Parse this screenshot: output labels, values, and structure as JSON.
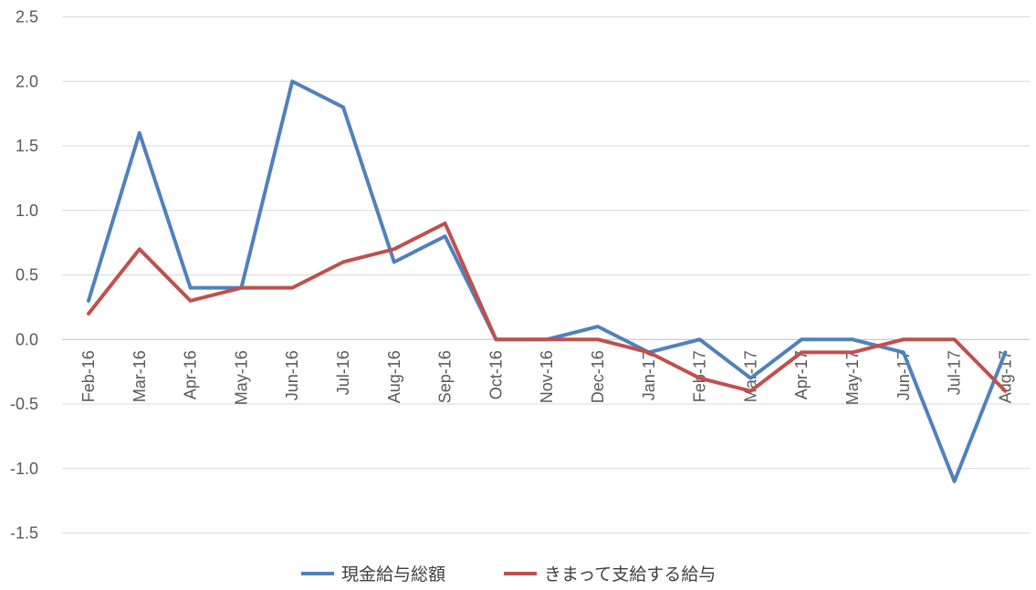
{
  "chart_data": {
    "type": "line",
    "categories": [
      "Feb-16",
      "Mar-16",
      "Apr-16",
      "May-16",
      "Jun-16",
      "Jul-16",
      "Aug-16",
      "Sep-16",
      "Oct-16",
      "Nov-16",
      "Dec-16",
      "Jan-17",
      "Feb-17",
      "Mar-17",
      "Apr-17",
      "May-17",
      "Jun-17",
      "Jul-17",
      "Aug-17"
    ],
    "series": [
      {
        "name": "現金給与総額",
        "color": "#4f81bd",
        "values": [
          0.3,
          1.6,
          0.4,
          0.4,
          2.0,
          1.8,
          0.6,
          0.8,
          0.0,
          0.0,
          0.1,
          -0.1,
          0.0,
          -0.3,
          0.0,
          0.0,
          -0.1,
          -1.1,
          -0.1
        ]
      },
      {
        "name": "きまって支給する給与",
        "color": "#c0504d",
        "values": [
          0.2,
          0.7,
          0.3,
          0.4,
          0.4,
          0.6,
          0.7,
          0.9,
          0.0,
          0.0,
          0.0,
          -0.1,
          -0.3,
          -0.4,
          -0.1,
          -0.1,
          0.0,
          0.0,
          -0.4
        ]
      }
    ],
    "yticks": [
      "2.5",
      "2.0",
      "1.5",
      "1.0",
      "0.5",
      "0.0",
      "-0.5",
      "-1.0",
      "-1.5"
    ],
    "ylim": [
      -1.5,
      2.5
    ],
    "grid": true,
    "legend": "bottom",
    "title": "",
    "xlabel": "",
    "ylabel": ""
  }
}
